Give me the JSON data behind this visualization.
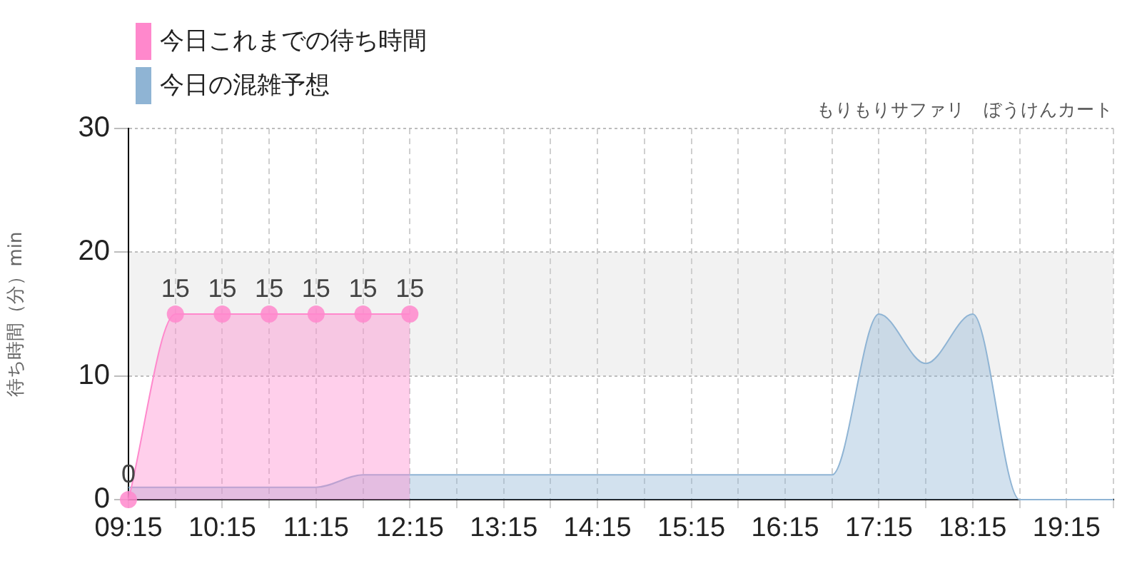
{
  "chart_data": {
    "type": "area",
    "title": "もりもりサファリ　ぼうけんカート",
    "ylabel": "待ち時間（分）min",
    "xlim": [
      9.25,
      19.75
    ],
    "xticks": [
      {
        "value": 9.25,
        "label": "09:15"
      },
      {
        "value": 9.75,
        "label": null
      },
      {
        "value": 10.25,
        "label": "10:15"
      },
      {
        "value": 10.75,
        "label": null
      },
      {
        "value": 11.25,
        "label": "11:15"
      },
      {
        "value": 11.75,
        "label": null
      },
      {
        "value": 12.25,
        "label": "12:15"
      },
      {
        "value": 12.75,
        "label": null
      },
      {
        "value": 13.25,
        "label": "13:15"
      },
      {
        "value": 13.75,
        "label": null
      },
      {
        "value": 14.25,
        "label": "14:15"
      },
      {
        "value": 14.75,
        "label": null
      },
      {
        "value": 15.25,
        "label": "15:15"
      },
      {
        "value": 15.75,
        "label": null
      },
      {
        "value": 16.25,
        "label": "16:15"
      },
      {
        "value": 16.75,
        "label": null
      },
      {
        "value": 17.25,
        "label": "17:15"
      },
      {
        "value": 17.75,
        "label": null
      },
      {
        "value": 18.25,
        "label": "18:15"
      },
      {
        "value": 18.75,
        "label": null
      },
      {
        "value": 19.25,
        "label": "19:15"
      },
      {
        "value": 19.75,
        "label": null
      }
    ],
    "ylim": [
      0,
      30
    ],
    "yticks": [
      0,
      10,
      20,
      30
    ],
    "grid": true,
    "legend": "top left",
    "bands": [
      {
        "axis": "y",
        "from": 10,
        "to": 20,
        "color": "#f2f2f2"
      }
    ],
    "series": [
      {
        "name": "今日これまでの待ち時間",
        "color": "#ff88cc",
        "marker": "circle",
        "x": [
          9.25,
          9.75,
          10.25,
          10.75,
          11.25,
          11.75,
          12.25
        ],
        "values": [
          0,
          15,
          15,
          15,
          15,
          15,
          15
        ],
        "value_labels": [
          "0",
          "15",
          "15",
          "15",
          "15",
          "15",
          "15"
        ]
      },
      {
        "name": "今日の混雑予想",
        "color": "#8fb4d4",
        "marker": "none",
        "x": [
          9.25,
          9.75,
          10.25,
          10.75,
          11.25,
          11.75,
          12.25,
          12.75,
          13.25,
          13.75,
          14.25,
          14.75,
          15.25,
          15.75,
          16.25,
          16.75,
          17.25,
          17.75,
          18.25,
          18.75,
          19.25,
          19.75
        ],
        "values": [
          1,
          1,
          1,
          1,
          1,
          2,
          2,
          2,
          2,
          2,
          2,
          2,
          2,
          2,
          2,
          2,
          15,
          11,
          15,
          0,
          0,
          0
        ]
      }
    ]
  }
}
